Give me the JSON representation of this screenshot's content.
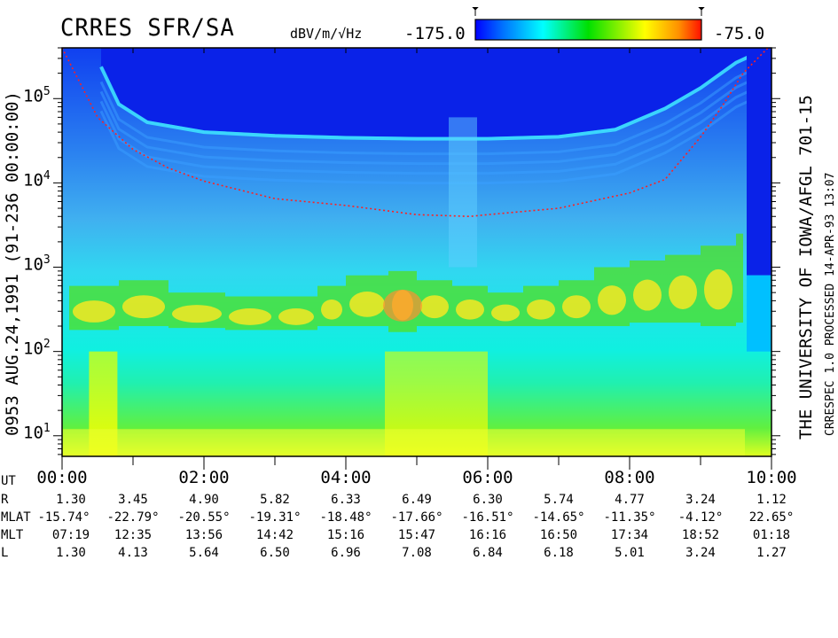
{
  "header": {
    "title": "CRRES SFR/SA",
    "units": "dBV/m/√Hz",
    "colorbar_min": "-175.0",
    "colorbar_max": "-75.0"
  },
  "left_label": "0953  AUG.24,1991  (91-236 00:00:00)",
  "right_label": "THE UNIVERSITY OF IOWA/AFGL 701-15",
  "right_sublabel": "CRRESPEC 1.0   PROCESSED 14-APR-93  13:07",
  "chart_data": {
    "type": "heatmap",
    "title": "CRRES SFR/SA",
    "colorbar": {
      "label": "dBV/m/√Hz",
      "min": -175.0,
      "max": -75.0,
      "colors": [
        "#0000ff",
        "#00c8ff",
        "#00ffff",
        "#00e000",
        "#ffff00",
        "#ff2000"
      ]
    },
    "x_range": [
      "00:00",
      "10:00"
    ],
    "y_scale": "log",
    "y_range": [
      5.7,
      400000
    ],
    "y_ticks": [
      {
        "base": "10",
        "exp": "1"
      },
      {
        "base": "10",
        "exp": "2"
      },
      {
        "base": "10",
        "exp": "3"
      },
      {
        "base": "10",
        "exp": "4"
      },
      {
        "base": "10",
        "exp": "5"
      }
    ],
    "x_ticks": [
      "00:00",
      "02:00",
      "04:00",
      "06:00",
      "08:00",
      "10:00"
    ],
    "red_dotted_curve": {
      "t_hours": [
        0.0,
        0.5,
        1.0,
        1.5,
        2.0,
        3.0,
        4.0,
        5.0,
        5.75,
        6.0,
        7.0,
        8.0,
        8.5,
        9.0,
        9.3,
        9.6,
        9.95
      ],
      "freq_hz": [
        400000,
        60000,
        25000,
        15000,
        10500,
        6500,
        5400,
        4200,
        4000,
        4200,
        5000,
        7600,
        11000,
        35000,
        80000,
        200000,
        400000
      ]
    },
    "upper_band_curve": {
      "t_hours": [
        0.55,
        0.8,
        1.2,
        2.0,
        3.0,
        4.0,
        5.0,
        6.0,
        7.0,
        7.8,
        8.5,
        9.0,
        9.5,
        9.9
      ],
      "freq_hz": [
        250000,
        90000,
        55000,
        42000,
        38000,
        36000,
        35000,
        35000,
        37000,
        45000,
        80000,
        140000,
        280000,
        400000
      ]
    },
    "hiss_band": {
      "t_hours": [
        0.1,
        0.8,
        1.5,
        2.3,
        3.0,
        3.6,
        4.0,
        4.6,
        5.0,
        5.5,
        6.0,
        6.5,
        7.0,
        7.5,
        8.0,
        8.5,
        9.0,
        9.5
      ],
      "f_low_hz": [
        180,
        200,
        190,
        180,
        180,
        200,
        200,
        170,
        200,
        200,
        200,
        200,
        200,
        200,
        220,
        220,
        200,
        220
      ],
      "f_high_hz": [
        600,
        700,
        500,
        450,
        450,
        600,
        800,
        900,
        700,
        600,
        500,
        600,
        700,
        1000,
        1200,
        1400,
        1800,
        2500
      ]
    }
  },
  "ephemeris": {
    "row_labels": [
      "UT",
      "R",
      "MLAT",
      "MLT",
      "L"
    ],
    "UT": [
      "00:00",
      "02:00",
      "04:00",
      "06:00",
      "08:00",
      "10:00"
    ],
    "R": [
      "1.30",
      "3.45",
      "4.90",
      "5.82",
      "6.33",
      "6.49",
      "6.30",
      "5.74",
      "4.77",
      "3.24",
      "1.12"
    ],
    "MLAT": [
      "-15.74°",
      "-22.79°",
      "-20.55°",
      "-19.31°",
      "-18.48°",
      "-17.66°",
      "-16.51°",
      "-14.65°",
      "-11.35°",
      "-4.12°",
      "22.65°"
    ],
    "MLT": [
      "07:19",
      "12:35",
      "13:56",
      "14:42",
      "15:16",
      "15:47",
      "16:16",
      "16:50",
      "17:34",
      "18:52",
      "01:18"
    ],
    "L": [
      "1.30",
      "4.13",
      "5.64",
      "6.50",
      "6.96",
      "7.08",
      "6.84",
      "6.18",
      "5.01",
      "3.24",
      "1.27"
    ]
  }
}
